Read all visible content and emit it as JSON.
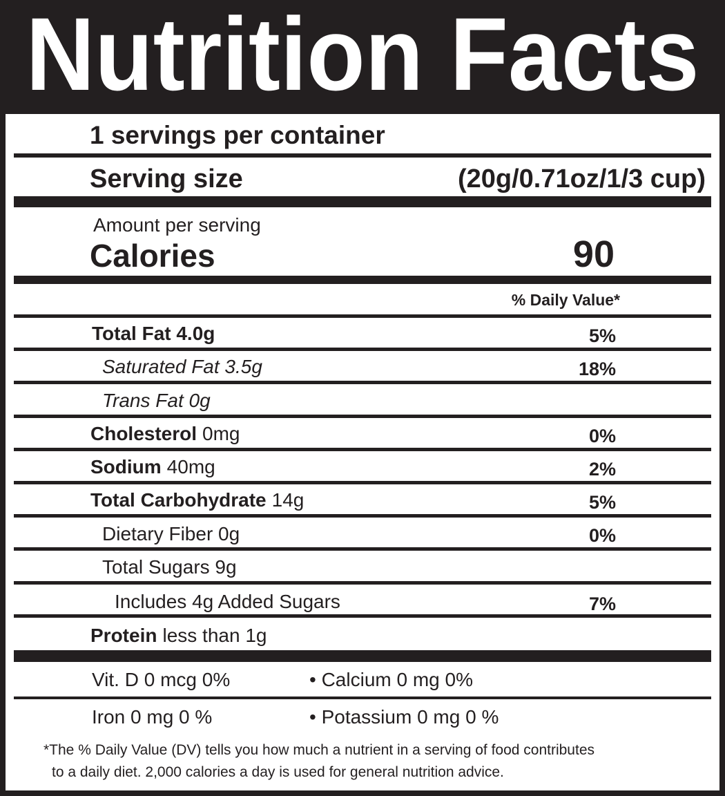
{
  "header": {
    "title": "Nutrition Facts"
  },
  "servings": "1 servings per container",
  "serving_size": {
    "label": "Serving size",
    "value": "(20g/0.71oz/1/3 cup)"
  },
  "amount_per_serving": "Amount per serving",
  "calories": {
    "label": "Calories",
    "value": "90"
  },
  "daily_value_header": "% Daily Value*",
  "rows": [
    {
      "label": "Total Fat 4.0g",
      "dv": "5%"
    },
    {
      "label": "Saturated Fat 3.5g",
      "dv": "18%"
    },
    {
      "label": "Trans Fat 0g"
    },
    {
      "label": "Cholesterol",
      "amount": "0mg",
      "dv": "0%"
    },
    {
      "label": "Sodium",
      "amount": "40mg",
      "dv": "2%"
    },
    {
      "label": "Total Carbohydrate",
      "amount": "14g",
      "dv": "5%"
    },
    {
      "label": "Dietary Fiber 0g",
      "dv": "0%"
    },
    {
      "label": "Total Sugars 9g"
    },
    {
      "label": "Includes 4g Added Sugars",
      "dv": "7%"
    },
    {
      "label": "Protein",
      "amount": "less than 1g"
    }
  ],
  "minerals": [
    [
      "Vit. D 0 mcg 0%",
      "• Calcium 0 mg 0%"
    ],
    [
      "Iron 0 mg 0 %",
      "• Potassium 0 mg 0 %"
    ]
  ],
  "footnote": [
    "*The % Daily Value (DV) tells you how much a nutrient in a  serving of food contributes",
    "to a daily diet. 2,000 calories a day is used for general nutrition advice."
  ]
}
